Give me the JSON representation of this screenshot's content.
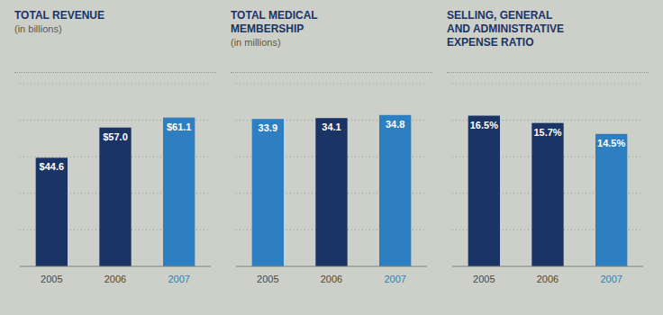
{
  "chart_data": [
    {
      "type": "bar",
      "title": "TOTAL REVENUE",
      "subtitle": "(in billions)",
      "categories": [
        "2005",
        "2006",
        "2007"
      ],
      "values": [
        44.6,
        57.0,
        61.1
      ],
      "value_labels": [
        "$44.6",
        "$57.0",
        "$61.1"
      ],
      "data_labels": true,
      "colors": [
        "#1a3465",
        "#1a3465",
        "#2e7fc1"
      ],
      "ylim": [
        0,
        75
      ],
      "yticks": [
        0,
        15,
        30,
        45,
        60,
        75
      ],
      "grid": true,
      "tick_labels": "x"
    },
    {
      "type": "bar",
      "title": "TOTAL MEDICAL\nMEMBERSHIP",
      "subtitle": "(in millions)",
      "categories": [
        "2005",
        "2006",
        "2007"
      ],
      "values": [
        33.9,
        34.1,
        34.8
      ],
      "data_labels": true,
      "colors": [
        "#2e7fc1",
        "#1a3465",
        "#2e7fc1"
      ],
      "ylim": [
        0,
        42
      ],
      "yticks": [
        0,
        8.4,
        16.8,
        25.2,
        33.6,
        42
      ],
      "grid": true,
      "tick_labels": "x"
    },
    {
      "type": "bar",
      "title": "SELLING, GENERAL\nAND ADMINISTRATIVE\nEXPENSE RATIO",
      "categories": [
        "2005",
        "2006",
        "2007"
      ],
      "values": [
        16.5,
        15.7,
        14.5
      ],
      "value_labels": [
        "16.5%",
        "15.7%",
        "14.5%"
      ],
      "data_labels": true,
      "colors": [
        "#1a3465",
        "#1a3465",
        "#2e7fc1"
      ],
      "ylim": [
        0,
        20
      ],
      "yticks": [
        0,
        4,
        8,
        12,
        16,
        20
      ],
      "grid": true,
      "tick_labels": "x"
    }
  ]
}
